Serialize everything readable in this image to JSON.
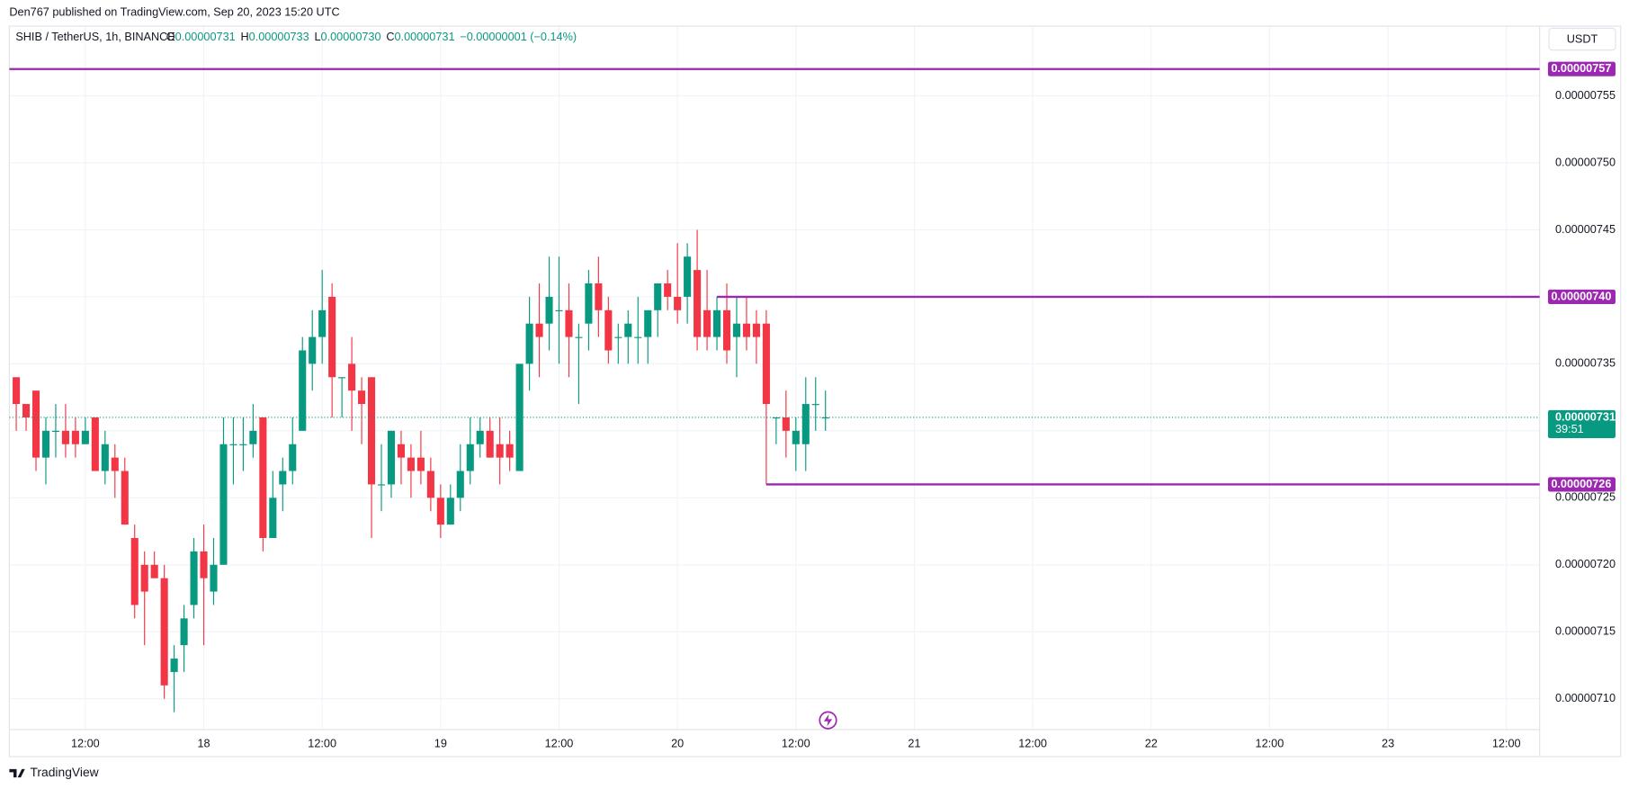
{
  "header": {
    "published": "Den767 published on TradingView.com, Sep 20, 2023 15:20 UTC",
    "currency_button": "USDT",
    "logo": "TradingView"
  },
  "chart_data": {
    "type": "candlestick",
    "title": "SHIB / TetherUS, 1h, BINANCE",
    "legend": {
      "fields": [
        {
          "key": "O",
          "value": "0.00000731"
        },
        {
          "key": "H",
          "value": "0.00000733"
        },
        {
          "key": "L",
          "value": "0.00000730"
        },
        {
          "key": "C",
          "value": "0.00000731"
        }
      ],
      "change": "−0.00000001 (−0.14%)"
    },
    "up_color": "#089981",
    "down_color": "#f23645",
    "grid": true,
    "x": [
      "2023-09-17T05:00",
      "2023-09-17T06:00",
      "2023-09-17T07:00",
      "2023-09-17T08:00",
      "2023-09-17T09:00",
      "2023-09-17T10:00",
      "2023-09-17T11:00",
      "2023-09-17T12:00",
      "2023-09-17T13:00",
      "2023-09-17T14:00",
      "2023-09-17T15:00",
      "2023-09-17T16:00",
      "2023-09-17T17:00",
      "2023-09-17T18:00",
      "2023-09-17T19:00",
      "2023-09-17T20:00",
      "2023-09-17T21:00",
      "2023-09-17T22:00",
      "2023-09-17T23:00",
      "2023-09-18T00:00",
      "2023-09-18T01:00",
      "2023-09-18T02:00",
      "2023-09-18T03:00",
      "2023-09-18T04:00",
      "2023-09-18T05:00",
      "2023-09-18T06:00",
      "2023-09-18T07:00",
      "2023-09-18T08:00",
      "2023-09-18T09:00",
      "2023-09-18T10:00",
      "2023-09-18T11:00",
      "2023-09-18T12:00",
      "2023-09-18T13:00",
      "2023-09-18T14:00",
      "2023-09-18T15:00",
      "2023-09-18T16:00",
      "2023-09-18T17:00",
      "2023-09-18T18:00",
      "2023-09-18T19:00",
      "2023-09-18T20:00",
      "2023-09-18T21:00",
      "2023-09-18T22:00",
      "2023-09-18T23:00",
      "2023-09-19T00:00",
      "2023-09-19T01:00",
      "2023-09-19T02:00",
      "2023-09-19T03:00",
      "2023-09-19T04:00",
      "2023-09-19T05:00",
      "2023-09-19T06:00",
      "2023-09-19T07:00",
      "2023-09-19T08:00",
      "2023-09-19T09:00",
      "2023-09-19T10:00",
      "2023-09-19T11:00",
      "2023-09-19T12:00",
      "2023-09-19T13:00",
      "2023-09-19T14:00",
      "2023-09-19T15:00",
      "2023-09-19T16:00",
      "2023-09-19T17:00",
      "2023-09-19T18:00",
      "2023-09-19T19:00",
      "2023-09-19T20:00",
      "2023-09-19T21:00",
      "2023-09-19T22:00",
      "2023-09-19T23:00",
      "2023-09-20T00:00",
      "2023-09-20T01:00",
      "2023-09-20T02:00",
      "2023-09-20T03:00",
      "2023-09-20T04:00",
      "2023-09-20T05:00",
      "2023-09-20T06:00",
      "2023-09-20T07:00",
      "2023-09-20T08:00",
      "2023-09-20T09:00",
      "2023-09-20T10:00",
      "2023-09-20T11:00",
      "2023-09-20T12:00",
      "2023-09-20T13:00",
      "2023-09-20T14:00",
      "2023-09-20T15:00"
    ],
    "open": [
      7.34e-06,
      7.32e-06,
      7.33e-06,
      7.28e-06,
      7.3e-06,
      7.3e-06,
      7.3e-06,
      7.29e-06,
      7.31e-06,
      7.27e-06,
      7.28e-06,
      7.27e-06,
      7.22e-06,
      7.2e-06,
      7.2e-06,
      7.19e-06,
      7.12e-06,
      7.14e-06,
      7.17e-06,
      7.21e-06,
      7.18e-06,
      7.2e-06,
      7.29e-06,
      7.29e-06,
      7.29e-06,
      7.31e-06,
      7.22e-06,
      7.26e-06,
      7.27e-06,
      7.3e-06,
      7.35e-06,
      7.37e-06,
      7.4e-06,
      7.34e-06,
      7.35e-06,
      7.33e-06,
      7.34e-06,
      7.26e-06,
      7.26e-06,
      7.29e-06,
      7.28e-06,
      7.28e-06,
      7.27e-06,
      7.25e-06,
      7.23e-06,
      7.25e-06,
      7.27e-06,
      7.29e-06,
      7.3e-06,
      7.29e-06,
      7.29e-06,
      7.27e-06,
      7.35e-06,
      7.38e-06,
      7.38e-06,
      7.39e-06,
      7.39e-06,
      7.37e-06,
      7.38e-06,
      7.41e-06,
      7.39e-06,
      7.37e-06,
      7.37e-06,
      7.37e-06,
      7.37e-06,
      7.39e-06,
      7.41e-06,
      7.4e-06,
      7.4e-06,
      7.42e-06,
      7.39e-06,
      7.37e-06,
      7.39e-06,
      7.37e-06,
      7.38e-06,
      7.38e-06,
      7.38e-06,
      7.31e-06,
      7.31e-06,
      7.29e-06,
      7.29e-06,
      7.32e-06,
      7.31e-06
    ],
    "high": [
      7.34e-06,
      7.32e-06,
      7.33e-06,
      7.31e-06,
      7.32e-06,
      7.32e-06,
      7.31e-06,
      7.31e-06,
      7.31e-06,
      7.3e-06,
      7.29e-06,
      7.28e-06,
      7.23e-06,
      7.21e-06,
      7.21e-06,
      7.2e-06,
      7.14e-06,
      7.17e-06,
      7.22e-06,
      7.23e-06,
      7.22e-06,
      7.31e-06,
      7.31e-06,
      7.31e-06,
      7.32e-06,
      7.31e-06,
      7.27e-06,
      7.28e-06,
      7.31e-06,
      7.37e-06,
      7.39e-06,
      7.42e-06,
      7.41e-06,
      7.34e-06,
      7.37e-06,
      7.34e-06,
      7.34e-06,
      7.29e-06,
      7.3e-06,
      7.3e-06,
      7.29e-06,
      7.3e-06,
      7.28e-06,
      7.26e-06,
      7.26e-06,
      7.29e-06,
      7.31e-06,
      7.31e-06,
      7.31e-06,
      7.31e-06,
      7.3e-06,
      7.35e-06,
      7.4e-06,
      7.41e-06,
      7.43e-06,
      7.43e-06,
      7.41e-06,
      7.38e-06,
      7.42e-06,
      7.43e-06,
      7.4e-06,
      7.38e-06,
      7.39e-06,
      7.4e-06,
      7.39e-06,
      7.41e-06,
      7.42e-06,
      7.44e-06,
      7.44e-06,
      7.45e-06,
      7.42e-06,
      7.4e-06,
      7.41e-06,
      7.4e-06,
      7.4e-06,
      7.39e-06,
      7.39e-06,
      7.31e-06,
      7.33e-06,
      7.31e-06,
      7.34e-06,
      7.34e-06,
      7.33e-06
    ],
    "low": [
      7.3e-06,
      7.3e-06,
      7.27e-06,
      7.26e-06,
      7.28e-06,
      7.28e-06,
      7.28e-06,
      7.29e-06,
      7.27e-06,
      7.26e-06,
      7.25e-06,
      7.23e-06,
      7.16e-06,
      7.14e-06,
      7.19e-06,
      7.1e-06,
      7.09e-06,
      7.12e-06,
      7.16e-06,
      7.14e-06,
      7.17e-06,
      7.2e-06,
      7.26e-06,
      7.27e-06,
      7.28e-06,
      7.21e-06,
      7.22e-06,
      7.24e-06,
      7.26e-06,
      7.3e-06,
      7.33e-06,
      7.35e-06,
      7.31e-06,
      7.31e-06,
      7.3e-06,
      7.29e-06,
      7.22e-06,
      7.24e-06,
      7.25e-06,
      7.26e-06,
      7.25e-06,
      7.26e-06,
      7.24e-06,
      7.22e-06,
      7.23e-06,
      7.24e-06,
      7.26e-06,
      7.28e-06,
      7.28e-06,
      7.26e-06,
      7.27e-06,
      7.27e-06,
      7.33e-06,
      7.34e-06,
      7.36e-06,
      7.35e-06,
      7.34e-06,
      7.32e-06,
      7.36e-06,
      7.37e-06,
      7.35e-06,
      7.35e-06,
      7.35e-06,
      7.35e-06,
      7.35e-06,
      7.37e-06,
      7.39e-06,
      7.38e-06,
      7.38e-06,
      7.36e-06,
      7.36e-06,
      7.36e-06,
      7.35e-06,
      7.34e-06,
      7.36e-06,
      7.35e-06,
      7.26e-06,
      7.29e-06,
      7.28e-06,
      7.27e-06,
      7.27e-06,
      7.3e-06,
      7.3e-06
    ],
    "close": [
      7.32e-06,
      7.31e-06,
      7.28e-06,
      7.3e-06,
      7.3e-06,
      7.29e-06,
      7.29e-06,
      7.3e-06,
      7.27e-06,
      7.29e-06,
      7.27e-06,
      7.23e-06,
      7.17e-06,
      7.18e-06,
      7.19e-06,
      7.11e-06,
      7.13e-06,
      7.16e-06,
      7.21e-06,
      7.19e-06,
      7.2e-06,
      7.29e-06,
      7.29e-06,
      7.29e-06,
      7.3e-06,
      7.22e-06,
      7.25e-06,
      7.27e-06,
      7.29e-06,
      7.36e-06,
      7.37e-06,
      7.39e-06,
      7.34e-06,
      7.34e-06,
      7.33e-06,
      7.32e-06,
      7.26e-06,
      7.26e-06,
      7.3e-06,
      7.28e-06,
      7.27e-06,
      7.27e-06,
      7.25e-06,
      7.23e-06,
      7.25e-06,
      7.27e-06,
      7.29e-06,
      7.3e-06,
      7.28e-06,
      7.28e-06,
      7.28e-06,
      7.35e-06,
      7.38e-06,
      7.37e-06,
      7.4e-06,
      7.39e-06,
      7.37e-06,
      7.37e-06,
      7.41e-06,
      7.39e-06,
      7.36e-06,
      7.37e-06,
      7.38e-06,
      7.37e-06,
      7.39e-06,
      7.41e-06,
      7.4e-06,
      7.39e-06,
      7.43e-06,
      7.37e-06,
      7.37e-06,
      7.39e-06,
      7.36e-06,
      7.38e-06,
      7.37e-06,
      7.37e-06,
      7.32e-06,
      7.31e-06,
      7.3e-06,
      7.3e-06,
      7.32e-06,
      7.32e-06,
      7.31e-06
    ],
    "xlim": [
      "2023-09-17T04:18",
      "2023-09-23T15:22"
    ],
    "xticks": [
      {
        "value": "2023-09-17T12:00",
        "label": "12:00"
      },
      {
        "value": "2023-09-18T00:00",
        "label": "18"
      },
      {
        "value": "2023-09-18T12:00",
        "label": "12:00"
      },
      {
        "value": "2023-09-19T00:00",
        "label": "19"
      },
      {
        "value": "2023-09-19T12:00",
        "label": "12:00"
      },
      {
        "value": "2023-09-20T00:00",
        "label": "20"
      },
      {
        "value": "2023-09-20T12:00",
        "label": "12:00"
      },
      {
        "value": "2023-09-21T00:00",
        "label": "21"
      },
      {
        "value": "2023-09-21T12:00",
        "label": "12:00"
      },
      {
        "value": "2023-09-22T00:00",
        "label": "22"
      },
      {
        "value": "2023-09-22T12:00",
        "label": "12:00"
      },
      {
        "value": "2023-09-23T00:00",
        "label": "23"
      },
      {
        "value": "2023-09-23T12:00",
        "label": "12:00"
      }
    ],
    "ylim": [
      7.077e-06,
      7.602e-06
    ],
    "yticks": [
      {
        "value": 7.1e-06,
        "label": "0.00000710"
      },
      {
        "value": 7.15e-06,
        "label": "0.00000715"
      },
      {
        "value": 7.2e-06,
        "label": "0.00000720"
      },
      {
        "value": 7.25e-06,
        "label": "0.00000725"
      },
      {
        "value": 7.3e-06,
        "label": "0.00000730"
      },
      {
        "value": 7.35e-06,
        "label": "0.00000735"
      },
      {
        "value": 7.4e-06,
        "label": "0.00000740"
      },
      {
        "value": 7.45e-06,
        "label": "0.00000745"
      },
      {
        "value": 7.5e-06,
        "label": "0.00000750"
      },
      {
        "value": 7.55e-06,
        "label": "0.00000755"
      }
    ],
    "horizontal_lines": [
      {
        "value": 7.57e-06,
        "label": "0.00000757",
        "color": "#9c27b0"
      },
      {
        "value": 7.4e-06,
        "label": "0.00000740",
        "from": "2023-09-20T04:00",
        "color": "#9c27b0"
      },
      {
        "value": 7.26e-06,
        "label": "0.00000726",
        "from": "2023-09-20T09:00",
        "color": "#9c27b0"
      }
    ],
    "current_price": {
      "value": 7.31e-06,
      "label": "0.00000731",
      "countdown": "39:51",
      "color": "#089981"
    }
  }
}
